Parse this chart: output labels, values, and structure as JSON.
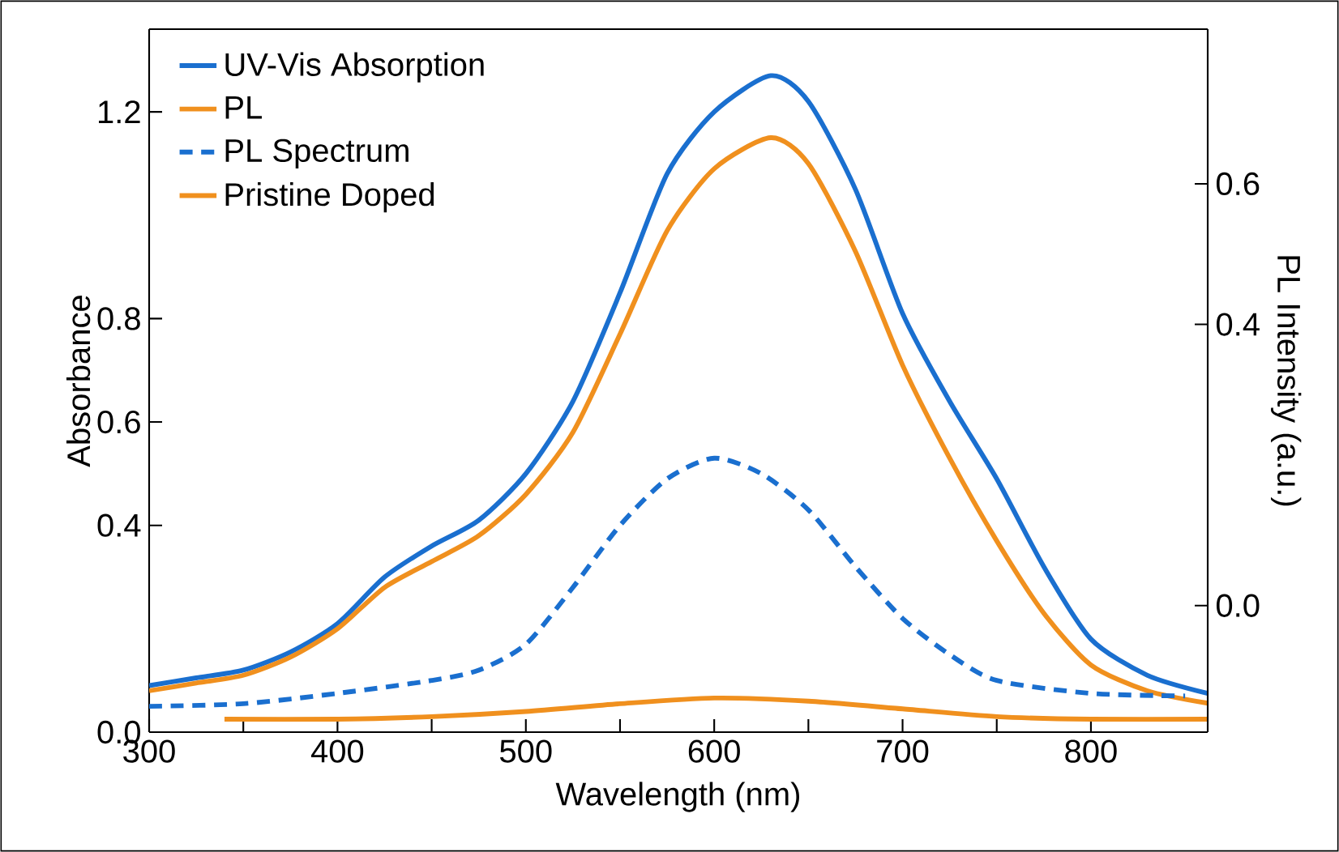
{
  "chart_data": {
    "type": "line",
    "xlabel": "Wavelength (nm)",
    "ylabel": "Absorbance",
    "y2label": "PL Intensity (a.u.)",
    "xlim": [
      300,
      862
    ],
    "xticks": [
      300,
      {
        "value": 350,
        "label": null
      },
      400,
      {
        "value": 450,
        "label": null
      },
      500,
      {
        "value": 550,
        "label": null
      },
      600,
      {
        "value": 650,
        "label": null
      },
      700,
      {
        "value": 750,
        "label": null
      },
      800
    ],
    "ylim": [
      0,
      1.36
    ],
    "yticks": [
      {
        "value": 0,
        "label": "0.0"
      },
      0.4,
      0.6,
      0.8,
      1.2
    ],
    "y2lim": [
      -0.18,
      0.82
    ],
    "y2ticks": [
      {
        "value": 0,
        "label": "0.0"
      },
      0.4,
      0.6
    ],
    "legend": "top left",
    "grid": false,
    "marker": "none",
    "series": [
      {
        "name": "UV-Vis Absorption",
        "color": "#1a6fcf",
        "line_style": "solid",
        "x": [
          300,
          325,
          350,
          375,
          400,
          425,
          450,
          475,
          500,
          525,
          550,
          575,
          600,
          630,
          650,
          675,
          700,
          725,
          750,
          775,
          800,
          830,
          862
        ],
        "values": [
          0.09,
          0.105,
          0.12,
          0.155,
          0.21,
          0.3,
          0.36,
          0.41,
          0.5,
          0.64,
          0.85,
          1.08,
          1.2,
          1.27,
          1.22,
          1.05,
          0.81,
          0.64,
          0.49,
          0.32,
          0.18,
          0.11,
          0.075
        ]
      },
      {
        "name": "PL",
        "color": "#f0901e",
        "line_style": "solid",
        "x": [
          300,
          325,
          350,
          375,
          400,
          425,
          450,
          475,
          500,
          525,
          550,
          575,
          600,
          630,
          650,
          675,
          700,
          725,
          750,
          775,
          800,
          830,
          862
        ],
        "values": [
          0.08,
          0.095,
          0.11,
          0.145,
          0.2,
          0.28,
          0.33,
          0.38,
          0.46,
          0.58,
          0.77,
          0.97,
          1.09,
          1.15,
          1.1,
          0.93,
          0.71,
          0.53,
          0.37,
          0.23,
          0.13,
          0.08,
          0.056
        ]
      },
      {
        "name": "PL Spectrum",
        "color": "#1a6fcf",
        "line_style": "dashed",
        "x": [
          300,
          350,
          400,
          450,
          475,
          500,
          525,
          550,
          575,
          600,
          625,
          650,
          675,
          700,
          725,
          750,
          800,
          850
        ],
        "values": [
          0.05,
          0.055,
          0.075,
          0.1,
          0.12,
          0.17,
          0.28,
          0.4,
          0.49,
          0.53,
          0.5,
          0.43,
          0.32,
          0.22,
          0.15,
          0.1,
          0.075,
          0.07
        ]
      },
      {
        "name": "Pristine Doped",
        "color": "#f0901e",
        "line_style": "solid",
        "x": [
          340,
          400,
          450,
          500,
          550,
          600,
          650,
          700,
          750,
          800,
          862
        ],
        "values": [
          0.025,
          0.025,
          0.03,
          0.04,
          0.055,
          0.066,
          0.06,
          0.045,
          0.03,
          0.025,
          0.025
        ]
      }
    ]
  }
}
